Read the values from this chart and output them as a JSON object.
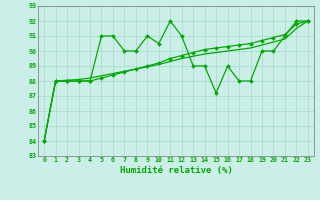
{
  "xlabel": "Humidité relative (%)",
  "bg_color": "#cceee8",
  "grid_color": "#aaddcc",
  "line_color": "#00aa00",
  "xlim": [
    -0.5,
    23.5
  ],
  "ylim": [
    83,
    93
  ],
  "yticks": [
    83,
    84,
    85,
    86,
    87,
    88,
    89,
    90,
    91,
    92,
    93
  ],
  "xticks": [
    0,
    1,
    2,
    3,
    4,
    5,
    6,
    7,
    8,
    9,
    10,
    11,
    12,
    13,
    14,
    15,
    16,
    17,
    18,
    19,
    20,
    21,
    22,
    23
  ],
  "series1_x": [
    0,
    1,
    2,
    3,
    4,
    5,
    6,
    7,
    8,
    9,
    10,
    11,
    12,
    13,
    14,
    15,
    16,
    17,
    18,
    19,
    20,
    21,
    22,
    23
  ],
  "series1_y": [
    84,
    88,
    88,
    88,
    88,
    91,
    91,
    90,
    90,
    91,
    90.5,
    92,
    91,
    89,
    89,
    87.2,
    89,
    88,
    88,
    90,
    90,
    91,
    92,
    92
  ],
  "series2_x": [
    0,
    1,
    2,
    3,
    4,
    5,
    6,
    7,
    8,
    9,
    10,
    11,
    12,
    13,
    14,
    15,
    16,
    17,
    18,
    19,
    20,
    21,
    22,
    23
  ],
  "series2_y": [
    84,
    88,
    88,
    88,
    88,
    88.2,
    88.4,
    88.6,
    88.8,
    89.0,
    89.2,
    89.5,
    89.7,
    89.9,
    90.1,
    90.2,
    90.3,
    90.4,
    90.5,
    90.7,
    90.9,
    91.1,
    91.8,
    92
  ],
  "series3_x": [
    0,
    1,
    2,
    3,
    4,
    5,
    6,
    7,
    8,
    9,
    10,
    11,
    12,
    13,
    14,
    15,
    16,
    17,
    18,
    19,
    20,
    21,
    22,
    23
  ],
  "series3_y": [
    84,
    88,
    88.05,
    88.1,
    88.2,
    88.35,
    88.5,
    88.65,
    88.8,
    88.95,
    89.1,
    89.3,
    89.5,
    89.65,
    89.8,
    89.9,
    90.0,
    90.1,
    90.2,
    90.4,
    90.6,
    90.8,
    91.5,
    92
  ]
}
